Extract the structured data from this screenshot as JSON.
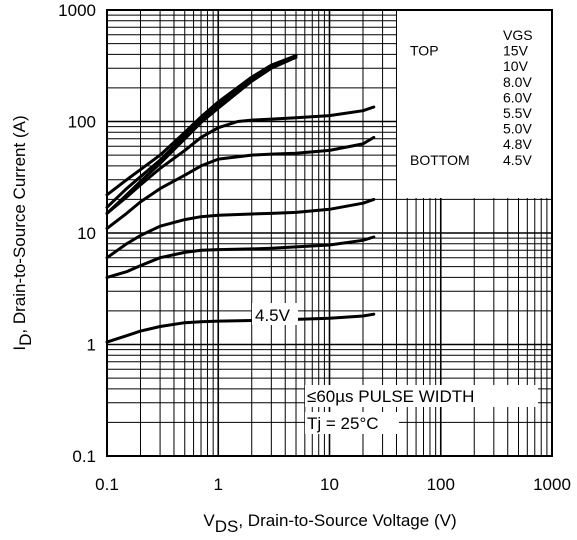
{
  "chart_data": {
    "type": "line",
    "xscale": "log",
    "yscale": "log",
    "xlim": [
      0.1,
      1000
    ],
    "ylim": [
      0.1,
      1000
    ],
    "grid": true,
    "xlabel_main": "V",
    "xlabel_sub": "DS",
    "xlabel_rest": ", Drain-to-Source Voltage (V)",
    "ylabel_main": "I",
    "ylabel_sub": "D",
    "ylabel_rest": ", Drain-to-Source Current (A)",
    "x_ticks": [
      {
        "value": 0.1,
        "label": "0.1"
      },
      {
        "value": 1,
        "label": "1"
      },
      {
        "value": 10,
        "label": "10"
      },
      {
        "value": 100,
        "label": "100"
      },
      {
        "value": 1000,
        "label": "1000"
      }
    ],
    "y_ticks": [
      {
        "value": 0.1,
        "label": "0.1"
      },
      {
        "value": 1,
        "label": "1"
      },
      {
        "value": 10,
        "label": "10"
      },
      {
        "value": 100,
        "label": "100"
      },
      {
        "value": 1000,
        "label": "1000"
      }
    ],
    "legend": {
      "placement": "top-right",
      "header": "VGS",
      "top_label": "TOP",
      "bottom_label": "BOTTOM",
      "entries": [
        "15V",
        "10V",
        "8.0V",
        "6.0V",
        "5.5V",
        "5.0V",
        "4.8V",
        "4.5V"
      ]
    },
    "annotations": {
      "pulse": "≤60µs PULSE WIDTH",
      "tj": "Tj = 25°C"
    },
    "series": [
      {
        "name": "15V",
        "x": [
          0.1,
          0.15,
          0.2,
          0.3,
          0.5,
          0.7,
          1,
          2,
          3,
          5
        ],
        "y": [
          22,
          30,
          37,
          50,
          80,
          110,
          150,
          250,
          320,
          390
        ]
      },
      {
        "name": "10V",
        "x": [
          0.1,
          0.15,
          0.2,
          0.3,
          0.5,
          0.7,
          1,
          2,
          3,
          5
        ],
        "y": [
          17,
          25,
          32,
          45,
          75,
          103,
          140,
          240,
          310,
          375
        ]
      },
      {
        "name": "8.0V",
        "x": [
          0.1,
          0.15,
          0.2,
          0.3,
          0.5,
          0.7,
          1,
          2,
          3,
          4.5
        ],
        "y": [
          15,
          22,
          29,
          42,
          70,
          98,
          132,
          230,
          300,
          360
        ]
      },
      {
        "name": "6.0V",
        "x": [
          0.1,
          0.15,
          0.2,
          0.3,
          0.5,
          0.7,
          1,
          1.5,
          2,
          3,
          5,
          10,
          20,
          25
        ],
        "y": [
          15,
          21,
          27,
          38,
          55,
          72,
          88,
          100,
          103,
          105,
          108,
          113,
          125,
          135
        ]
      },
      {
        "name": "5.5V",
        "x": [
          0.1,
          0.15,
          0.2,
          0.3,
          0.5,
          0.7,
          1,
          2,
          3,
          5,
          10,
          20,
          25
        ],
        "y": [
          11,
          15,
          19,
          25,
          33,
          40,
          46,
          50,
          51,
          52,
          55,
          63,
          72
        ]
      },
      {
        "name": "5.0V",
        "x": [
          0.1,
          0.15,
          0.2,
          0.3,
          0.5,
          0.7,
          1,
          2,
          3,
          5,
          10,
          20,
          25
        ],
        "y": [
          6,
          8,
          9.5,
          11.5,
          13.2,
          14,
          14.4,
          14.8,
          15,
          15.3,
          16.3,
          18.5,
          20
        ]
      },
      {
        "name": "4.8V",
        "x": [
          0.1,
          0.15,
          0.2,
          0.3,
          0.5,
          0.7,
          1,
          2,
          3,
          5,
          10,
          20,
          25
        ],
        "y": [
          4,
          4.5,
          5.1,
          6,
          6.7,
          7,
          7.1,
          7.2,
          7.3,
          7.5,
          7.8,
          8.6,
          9.2
        ]
      },
      {
        "name": "4.5V",
        "x": [
          0.1,
          0.15,
          0.2,
          0.3,
          0.5,
          0.7,
          1,
          2,
          3,
          5,
          10,
          20,
          25
        ],
        "y": [
          1.05,
          1.2,
          1.32,
          1.45,
          1.57,
          1.6,
          1.62,
          1.64,
          1.66,
          1.68,
          1.72,
          1.8,
          1.87
        ]
      }
    ],
    "series_label": {
      "text": "4.5V"
    }
  }
}
